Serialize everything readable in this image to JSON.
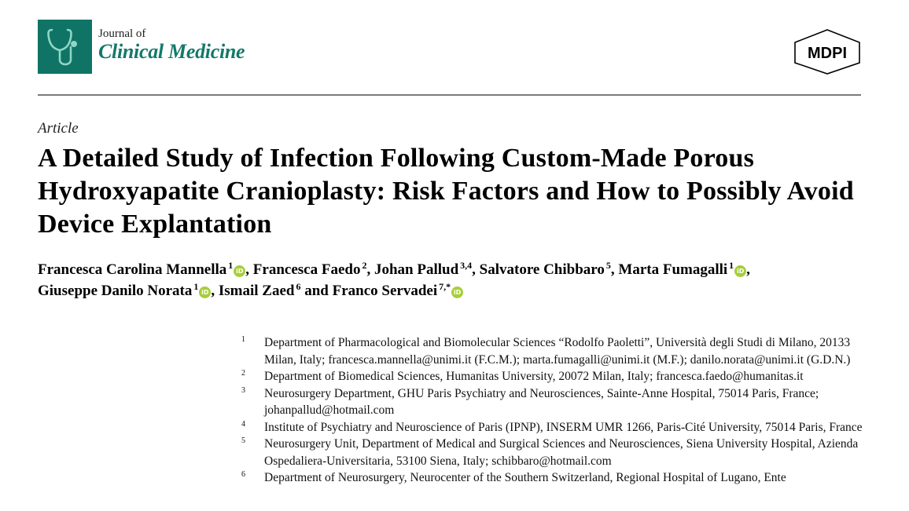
{
  "header": {
    "journal_prefix": "Journal of",
    "journal_name": "Clinical Medicine",
    "logo_icon": "stethoscope-icon",
    "publisher": "MDPI",
    "brand_color": "#0f7466"
  },
  "article": {
    "type": "Article",
    "title": "A Detailed Study of Infection Following Custom-Made Porous Hydroxyapatite Cranioplasty: Risk Factors and How to Possibly Avoid Device Explantation"
  },
  "authors": [
    {
      "name": "Francesca Carolina Mannella",
      "aff": "1",
      "orcid": true,
      "sep": ", "
    },
    {
      "name": "Francesca Faedo",
      "aff": "2",
      "orcid": false,
      "sep": ", "
    },
    {
      "name": "Johan Pallud",
      "aff": "3,4",
      "orcid": false,
      "sep": ", "
    },
    {
      "name": "Salvatore Chibbaro",
      "aff": "5",
      "orcid": false,
      "sep": ", "
    },
    {
      "name": "Marta Fumagalli",
      "aff": "1",
      "orcid": true,
      "sep": ","
    },
    {
      "name": "Giuseppe Danilo Norata",
      "aff": "1",
      "orcid": true,
      "sep": ", "
    },
    {
      "name": "Ismail Zaed",
      "aff": "6",
      "orcid": false,
      "sep": " and "
    },
    {
      "name": "Franco Servadei",
      "aff": "7,*",
      "orcid": true,
      "sep": ""
    }
  ],
  "orcid_label": "iD",
  "affiliations": [
    {
      "num": "1",
      "text": "Department of Pharmacological and Biomolecular Sciences “Rodolfo Paoletti”, Università degli Studi di Milano, 20133 Milan, Italy; francesca.mannella@unimi.it (F.C.M.); marta.fumagalli@unimi.it (M.F.); danilo.norata@unimi.it (G.D.N.)"
    },
    {
      "num": "2",
      "text": "Department of Biomedical Sciences, Humanitas University, 20072 Milan, Italy; francesca.faedo@humanitas.it"
    },
    {
      "num": "3",
      "text": "Neurosurgery Department, GHU Paris Psychiatry and Neurosciences, Sainte-Anne Hospital, 75014 Paris, France; johanpallud@hotmail.com"
    },
    {
      "num": "4",
      "text": "Institute of Psychiatry and Neuroscience of Paris (IPNP), INSERM UMR 1266, Paris-Cité University, 75014 Paris, France"
    },
    {
      "num": "5",
      "text": "Neurosurgery Unit, Department of Medical and Surgical Sciences and Neurosciences, Siena University Hospital, Azienda Ospedaliera-Universitaria, 53100 Siena, Italy; schibbaro@hotmail.com"
    },
    {
      "num": "6",
      "text": "Department of Neurosurgery, Neurocenter of the Southern Switzerland, Regional Hospital of Lugano, Ente"
    }
  ]
}
